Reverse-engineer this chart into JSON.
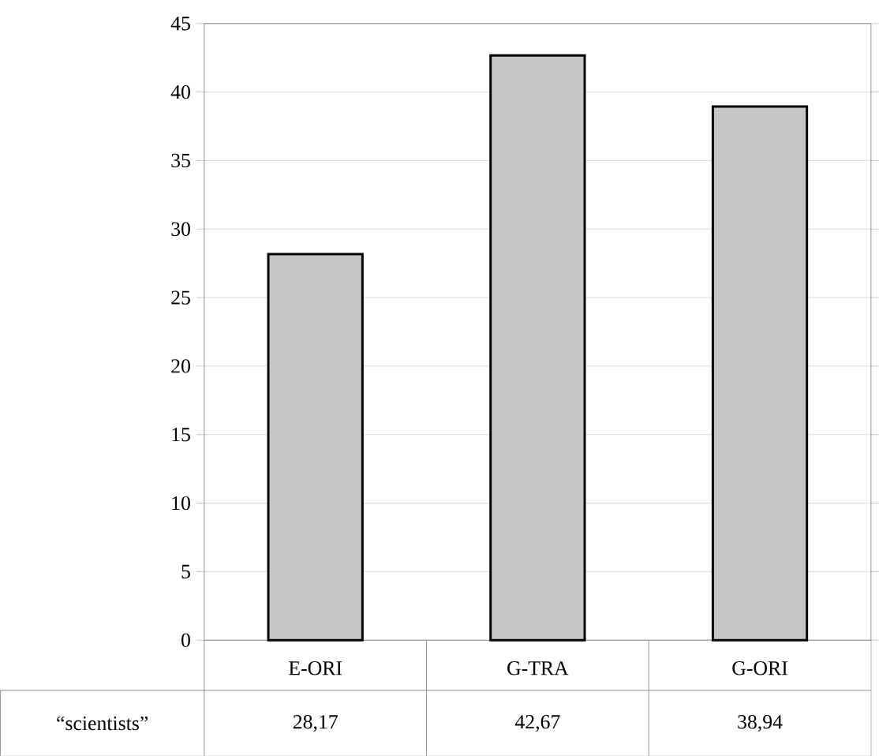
{
  "chart_data": {
    "type": "bar",
    "categories": [
      "E-ORI",
      "G-TRA",
      "G-ORI"
    ],
    "series": [
      {
        "name": "“scientists”",
        "color": "#c6c6c6",
        "values": [
          28.17,
          42.67,
          38.94
        ],
        "value_labels": [
          "28,17",
          "42,67",
          "38,94"
        ]
      }
    ],
    "ylim": [
      0,
      45
    ],
    "yticks": [
      0,
      5,
      10,
      15,
      20,
      25,
      30,
      35,
      40,
      45
    ],
    "grid": "y"
  }
}
